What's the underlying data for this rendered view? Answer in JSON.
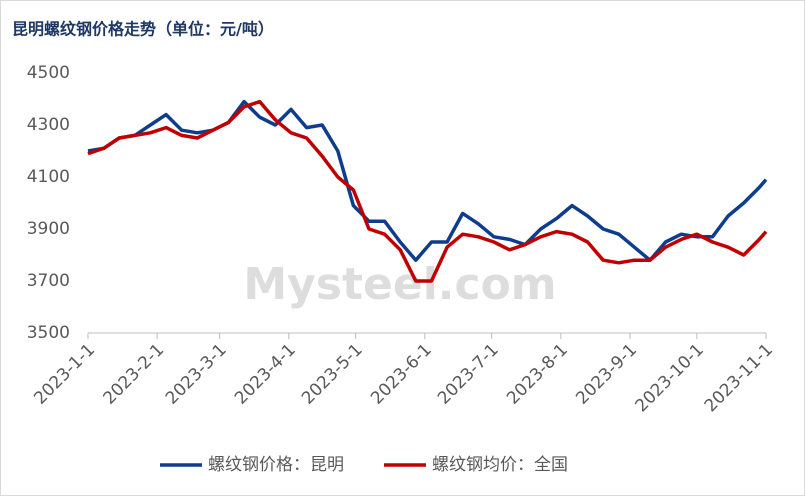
{
  "chart_data": {
    "type": "line",
    "title": "昆明螺纹钢价格走势（单位：元/吨）",
    "watermark": "Mysteel.com",
    "x": [
      "2023-1-1",
      "2023-1-8",
      "2023-1-15",
      "2023-1-22",
      "2023-1-29",
      "2023-2-5",
      "2023-2-12",
      "2023-2-19",
      "2023-2-26",
      "2023-3-5",
      "2023-3-12",
      "2023-3-19",
      "2023-3-26",
      "2023-4-2",
      "2023-4-9",
      "2023-4-16",
      "2023-4-23",
      "2023-4-30",
      "2023-5-7",
      "2023-5-14",
      "2023-5-21",
      "2023-5-28",
      "2023-6-4",
      "2023-6-11",
      "2023-6-18",
      "2023-6-25",
      "2023-7-2",
      "2023-7-9",
      "2023-7-16",
      "2023-7-23",
      "2023-7-30",
      "2023-8-6",
      "2023-8-13",
      "2023-8-20",
      "2023-8-27",
      "2023-9-3",
      "2023-9-10",
      "2023-9-17",
      "2023-9-24",
      "2023-10-1",
      "2023-10-8",
      "2023-10-15",
      "2023-10-22",
      "2023-10-29",
      "2023-11-1"
    ],
    "series": [
      {
        "name": "螺纹钢价格：昆明",
        "color": "#0d3d8c",
        "values": [
          4200,
          4210,
          4250,
          4260,
          4300,
          4340,
          4280,
          4270,
          4280,
          4310,
          4390,
          4330,
          4300,
          4360,
          4290,
          4300,
          4200,
          3990,
          3930,
          3930,
          3850,
          3780,
          3850,
          3850,
          3960,
          3920,
          3870,
          3860,
          3840,
          3900,
          3940,
          3990,
          3950,
          3900,
          3880,
          3830,
          3780,
          3850,
          3880,
          3870,
          3870,
          3950,
          4000,
          4060,
          4090
        ]
      },
      {
        "name": "螺纹钢均价：全国",
        "color": "#c00000",
        "values": [
          4190,
          4210,
          4250,
          4260,
          4270,
          4290,
          4260,
          4250,
          4280,
          4310,
          4370,
          4390,
          4320,
          4270,
          4250,
          4180,
          4100,
          4050,
          3900,
          3880,
          3820,
          3700,
          3700,
          3830,
          3880,
          3870,
          3850,
          3820,
          3840,
          3870,
          3890,
          3880,
          3850,
          3780,
          3770,
          3780,
          3780,
          3830,
          3860,
          3880,
          3850,
          3830,
          3800,
          3860,
          3890
        ]
      }
    ],
    "xlim": [
      "2023-1-1",
      "2023-11-1"
    ],
    "xticks": [
      "2023-1-1",
      "2023-2-1",
      "2023-3-1",
      "2023-4-1",
      "2023-5-1",
      "2023-6-1",
      "2023-7-1",
      "2023-8-1",
      "2023-9-1",
      "2023-10-1",
      "2023-11-1"
    ],
    "ylim": [
      3500,
      4500
    ],
    "yticks": [
      3500,
      3700,
      3900,
      4100,
      4300,
      4500
    ],
    "grid": false,
    "legend": "bottom"
  }
}
